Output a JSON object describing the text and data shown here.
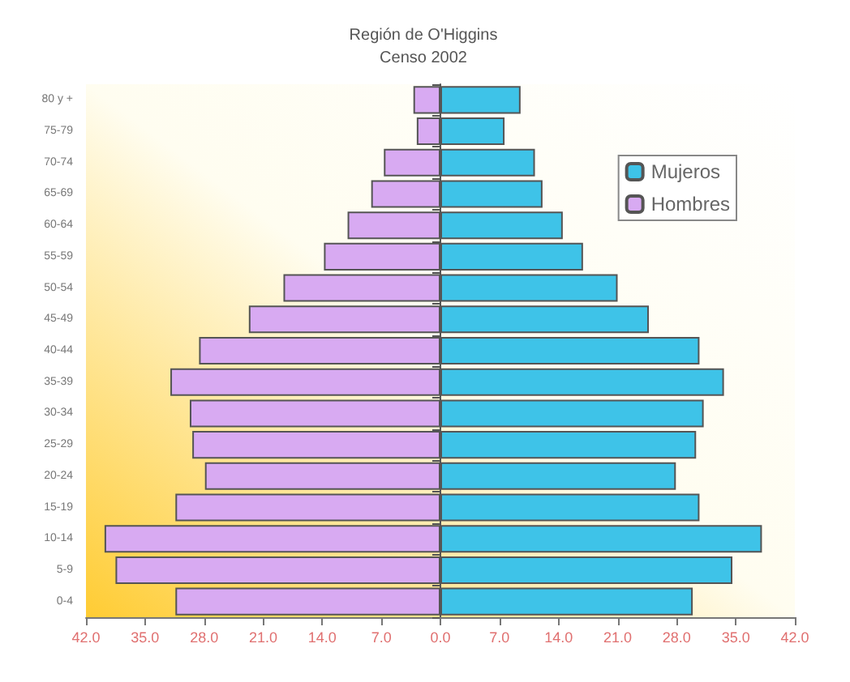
{
  "chart_data": {
    "type": "bar",
    "orientation": "horizontal",
    "stacked": true,
    "title": "Región de O'Higgins",
    "subtitle": "Censo 2002",
    "categories": [
      "80 y +",
      "75-79",
      "70-74",
      "65-69",
      "60-64",
      "55-59",
      "50-54",
      "45-49",
      "40-44",
      "35-39",
      "30-34",
      "25-29",
      "20-24",
      "15-19",
      "10-14",
      "5-9",
      "0-4"
    ],
    "series": [
      {
        "name": "Mujeros",
        "color": "#3ec3e8",
        "values": [
          9.5,
          7.6,
          11.2,
          12.1,
          14.5,
          16.9,
          21.0,
          24.7,
          30.7,
          33.6,
          31.2,
          30.3,
          27.9,
          30.7,
          38.1,
          34.6,
          29.9
        ]
      },
      {
        "name": "Hombres",
        "color": "#d8aaf2",
        "values": [
          -3.2,
          -2.8,
          -6.7,
          -8.2,
          -11.0,
          -13.8,
          -18.6,
          -22.7,
          -28.6,
          -32.0,
          -29.7,
          -29.4,
          -27.9,
          -31.4,
          -39.8,
          -38.5,
          -31.4
        ]
      }
    ],
    "xlim": [
      -42,
      42
    ],
    "xticks": [
      {
        "value": -42,
        "label": "42.0"
      },
      {
        "value": -35,
        "label": "35.0"
      },
      {
        "value": -28,
        "label": "28.0"
      },
      {
        "value": -21,
        "label": "21.0"
      },
      {
        "value": -14,
        "label": "14.0"
      },
      {
        "value": -7,
        "label": "7.0"
      },
      {
        "value": 0,
        "label": "0.0"
      },
      {
        "value": 7,
        "label": "7.0"
      },
      {
        "value": 14,
        "label": "14.0"
      },
      {
        "value": 21,
        "label": "21.0"
      },
      {
        "value": 28,
        "label": "28.0"
      },
      {
        "value": 35,
        "label": "35.0"
      },
      {
        "value": 42,
        "label": "42.0"
      }
    ],
    "legend": "top right"
  }
}
